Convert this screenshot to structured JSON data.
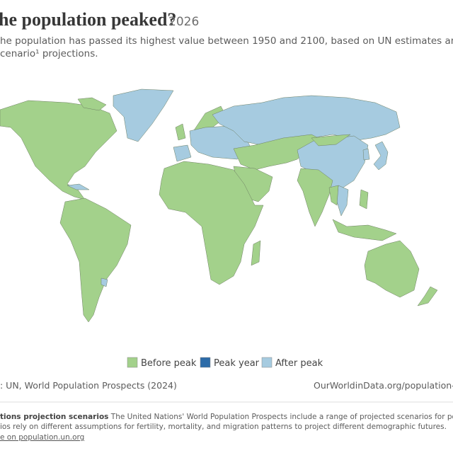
{
  "header": {
    "title": "he population peaked?",
    "year": "2026",
    "subtitle_lines": [
      "he population has passed its highest value between 1950 and 2100, based on UN estimates and",
      "cenario¹ projections."
    ]
  },
  "legend": {
    "items": [
      {
        "label": "Before peak",
        "color": "#a3d18b"
      },
      {
        "label": "Peak year",
        "color": "#2c6ba8"
      },
      {
        "label": "After peak",
        "color": "#a6cbe0"
      }
    ]
  },
  "footer": {
    "source": ": UN, World Population Prospects (2024)",
    "url": "OurWorldinData.org/population-grow",
    "note_title": "tions projection scenarios",
    "note_lines": [
      "The United Nations' World Population Prospects include a range of projected scenarios for populatio",
      "ios rely on different assumptions for fertility, mortality, and migration patterns to project different demographic futures."
    ],
    "link": "e on population.un.org"
  }
}
